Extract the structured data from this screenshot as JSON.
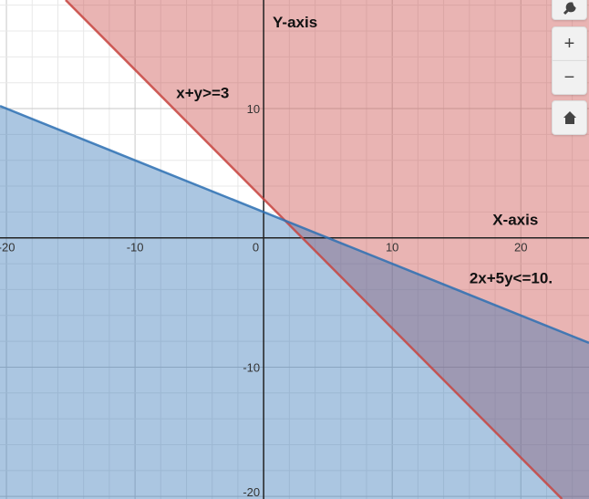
{
  "chart_data": {
    "type": "inequality-region",
    "xlim": [
      -20.5,
      25.3
    ],
    "ylim": [
      -20.2,
      18.4
    ],
    "grid": true,
    "minor_grid_step": 2,
    "major_grid_step": 10,
    "x_tick_labels": [
      "-20",
      "-10",
      "0",
      "10",
      "20"
    ],
    "y_tick_labels": [
      "10",
      "-10",
      "-20"
    ],
    "x_ticks": [
      -20,
      -10,
      0,
      10,
      20
    ],
    "y_ticks": [
      10,
      -10,
      -20
    ],
    "regions": [
      {
        "inequality": "x+y>=3",
        "a": 1,
        "b": 1,
        "c": 3,
        "sense": ">=",
        "color": "#c74440"
      },
      {
        "inequality": "2x+5y<=10",
        "a": 2,
        "b": 5,
        "c": 10,
        "sense": "<=",
        "color": "#2d70b3"
      }
    ],
    "annotations": [
      {
        "text": "Y-axis",
        "x": 0.7,
        "y": 16.3
      },
      {
        "text": "x+y>=3",
        "x": -6.8,
        "y": 10.8
      },
      {
        "text": "X-axis",
        "x": 17.8,
        "y": 1.0
      },
      {
        "text": "2x+5y<=10.",
        "x": 16.0,
        "y": -3.5
      }
    ]
  },
  "controls": {
    "settings_icon": "wrench-icon",
    "zoom_in": "+",
    "zoom_out": "−",
    "home_icon": "home-icon"
  }
}
